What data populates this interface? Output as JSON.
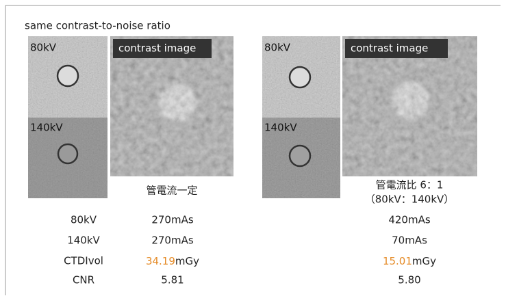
{
  "title": "same contrast-to-noise ratio",
  "panels": [
    {
      "small_labels": [
        "80kV",
        "140kV"
      ],
      "image_label": "contrast image",
      "caption": [
        "管電流一定"
      ]
    },
    {
      "small_labels": [
        "80kV",
        "140kV"
      ],
      "image_label": "contrast image",
      "caption": [
        "管電流比 6：1",
        "（80kV：140kV）"
      ]
    }
  ],
  "table": {
    "rows": [
      [
        "80kV",
        "270mAs",
        "420mAs"
      ],
      [
        "140kV",
        "270mAs",
        "70mAs"
      ],
      [
        "CTDIvol",
        {
          "value": "34.19",
          "unit": "mGy"
        },
        {
          "value": "15.01",
          "unit": "mGy"
        }
      ],
      [
        "CNR",
        "5.81",
        "5.80"
      ]
    ]
  }
}
